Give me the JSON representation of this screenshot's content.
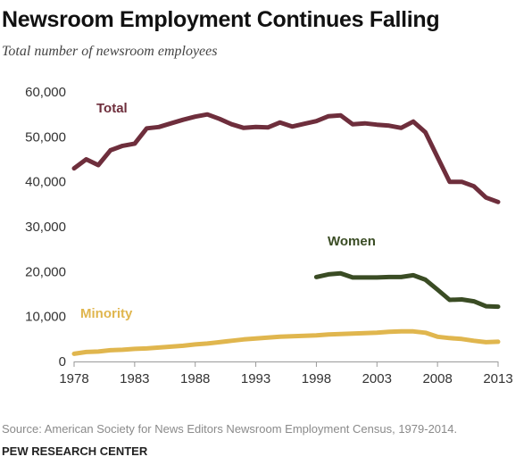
{
  "title": "Newsroom Employment Continues Falling",
  "subtitle": "Total number of newsroom employees",
  "source": "Source: American Society for News Editors Newsroom Employment Census, 1979-2014.",
  "organization": "PEW RESEARCH CENTER",
  "chart_data": {
    "type": "line",
    "title": "Newsroom Employment Continues Falling",
    "subtitle": "Total number of newsroom employees",
    "xlabel": "",
    "ylabel": "",
    "xlim": [
      1978,
      2013
    ],
    "ylim": [
      0,
      60000
    ],
    "grid": false,
    "legend": "inline labels",
    "x_ticks": [
      "1978",
      "1983",
      "1988",
      "1993",
      "1998",
      "2003",
      "2008",
      "2013"
    ],
    "y_ticks": [
      "0",
      "10,000",
      "20,000",
      "30,000",
      "40,000",
      "50,000",
      "60,000"
    ],
    "y_tick_values": [
      0,
      10000,
      20000,
      30000,
      40000,
      50000,
      60000
    ],
    "series": [
      {
        "name": "Total",
        "color": "#6e2e3c",
        "x": [
          1978,
          1979,
          1980,
          1981,
          1982,
          1983,
          1984,
          1985,
          1986,
          1987,
          1988,
          1989,
          1990,
          1991,
          1992,
          1993,
          1994,
          1995,
          1996,
          1997,
          1998,
          1999,
          2000,
          2001,
          2002,
          2003,
          2004,
          2005,
          2006,
          2007,
          2008,
          2009,
          2010,
          2011,
          2012,
          2013
        ],
        "values": [
          43000,
          45000,
          43700,
          47000,
          48000,
          48500,
          51900,
          52200,
          53000,
          53800,
          54500,
          55000,
          54000,
          52800,
          52000,
          52200,
          52100,
          53200,
          52300,
          52900,
          53500,
          54600,
          54800,
          52800,
          53000,
          52700,
          52500,
          52000,
          53400,
          51000,
          45500,
          40000,
          40000,
          39000,
          36500,
          35500
        ]
      },
      {
        "name": "Women",
        "color": "#3a4c24",
        "x": [
          1998,
          1999,
          2000,
          2001,
          2002,
          2003,
          2004,
          2005,
          2006,
          2007,
          2008,
          2009,
          2010,
          2011,
          2012,
          2013
        ],
        "values": [
          18800,
          19400,
          19600,
          18700,
          18700,
          18700,
          18800,
          18800,
          19200,
          18200,
          16000,
          13700,
          13800,
          13400,
          12300,
          12200
        ]
      },
      {
        "name": "Minority",
        "color": "#e0b64e",
        "x": [
          1978,
          1979,
          1980,
          1981,
          1982,
          1983,
          1984,
          1985,
          1986,
          1987,
          1988,
          1989,
          1990,
          1991,
          1992,
          1993,
          1994,
          1995,
          1996,
          1997,
          1998,
          1999,
          2000,
          2001,
          2002,
          2003,
          2004,
          2005,
          2006,
          2007,
          2008,
          2009,
          2010,
          2011,
          2012,
          2013
        ],
        "values": [
          1700,
          2100,
          2200,
          2500,
          2600,
          2800,
          2900,
          3100,
          3300,
          3500,
          3800,
          4000,
          4300,
          4600,
          4900,
          5100,
          5300,
          5500,
          5600,
          5700,
          5800,
          6000,
          6100,
          6200,
          6300,
          6400,
          6600,
          6700,
          6700,
          6400,
          5500,
          5200,
          5000,
          4600,
          4300,
          4400
        ]
      }
    ]
  }
}
